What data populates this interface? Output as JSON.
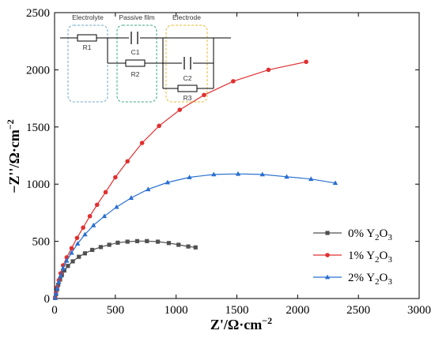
{
  "chart_data": {
    "type": "scatter",
    "xlabel": "Z'/Ω·cm",
    "xlabel_exp": "−2",
    "ylabel": "−Z''/Ω·cm",
    "ylabel_exp": "−2",
    "xlim": [
      0,
      3000
    ],
    "ylim": [
      0,
      2500
    ],
    "xticks": [
      0,
      500,
      1000,
      1500,
      2000,
      2500,
      3000
    ],
    "yticks": [
      0,
      500,
      1000,
      1500,
      2000,
      2500
    ],
    "xtick_labels": [
      "0",
      "500",
      "1000",
      "1500",
      "2000",
      "2500",
      "3000"
    ],
    "ytick_labels": [
      "0",
      "500",
      "1000",
      "1500",
      "2000",
      "2500"
    ],
    "legend_position": "lower-right",
    "series": [
      {
        "name": "0% Y",
        "name_sub": "2",
        "name_tail": "O",
        "name_sub2": "3",
        "color": "#505050",
        "marker": "square",
        "points": [
          [
            5,
            5
          ],
          [
            12,
            40
          ],
          [
            20,
            80
          ],
          [
            30,
            120
          ],
          [
            45,
            165
          ],
          [
            60,
            205
          ],
          [
            80,
            245
          ],
          [
            110,
            285
          ],
          [
            150,
            325
          ],
          [
            200,
            365
          ],
          [
            250,
            395
          ],
          [
            310,
            425
          ],
          [
            380,
            450
          ],
          [
            450,
            470
          ],
          [
            520,
            488
          ],
          [
            600,
            497
          ],
          [
            680,
            502
          ],
          [
            760,
            502
          ],
          [
            850,
            497
          ],
          [
            940,
            485
          ],
          [
            1020,
            470
          ],
          [
            1100,
            455
          ],
          [
            1160,
            447
          ]
        ]
      },
      {
        "name": "1% Y",
        "name_sub": "2",
        "name_tail": "O",
        "name_sub2": "3",
        "color": "#e03030",
        "marker": "circle",
        "points": [
          [
            5,
            5
          ],
          [
            12,
            50
          ],
          [
            22,
            100
          ],
          [
            35,
            160
          ],
          [
            50,
            220
          ],
          [
            70,
            290
          ],
          [
            100,
            360
          ],
          [
            140,
            440
          ],
          [
            185,
            530
          ],
          [
            235,
            620
          ],
          [
            290,
            720
          ],
          [
            350,
            820
          ],
          [
            420,
            930
          ],
          [
            500,
            1060
          ],
          [
            600,
            1200
          ],
          [
            720,
            1360
          ],
          [
            860,
            1510
          ],
          [
            1030,
            1650
          ],
          [
            1230,
            1780
          ],
          [
            1470,
            1900
          ],
          [
            1760,
            2000
          ],
          [
            2070,
            2070
          ]
        ]
      },
      {
        "name": "2% Y",
        "name_sub": "2",
        "name_tail": "O",
        "name_sub2": "3",
        "color": "#2a6fd0",
        "marker": "triangle",
        "points": [
          [
            5,
            5
          ],
          [
            12,
            45
          ],
          [
            22,
            90
          ],
          [
            35,
            145
          ],
          [
            50,
            200
          ],
          [
            70,
            265
          ],
          [
            100,
            330
          ],
          [
            140,
            400
          ],
          [
            190,
            480
          ],
          [
            250,
            560
          ],
          [
            320,
            640
          ],
          [
            410,
            720
          ],
          [
            510,
            800
          ],
          [
            630,
            880
          ],
          [
            770,
            955
          ],
          [
            930,
            1015
          ],
          [
            1110,
            1060
          ],
          [
            1310,
            1085
          ],
          [
            1510,
            1090
          ],
          [
            1710,
            1085
          ],
          [
            1910,
            1065
          ],
          [
            2110,
            1045
          ],
          [
            2310,
            1010
          ]
        ]
      }
    ],
    "inset": {
      "labels": {
        "electrolyte": "Electrolyte",
        "passive_film": "Passive film",
        "electrode": "Electrode",
        "r1": "R1",
        "c1": "C1",
        "r2": "R2",
        "c2": "C2",
        "r3": "R3"
      },
      "box_colors": {
        "electrolyte": "#6aaac8",
        "passive_film": "#3aaa80",
        "electrode": "#e8b830"
      }
    }
  }
}
